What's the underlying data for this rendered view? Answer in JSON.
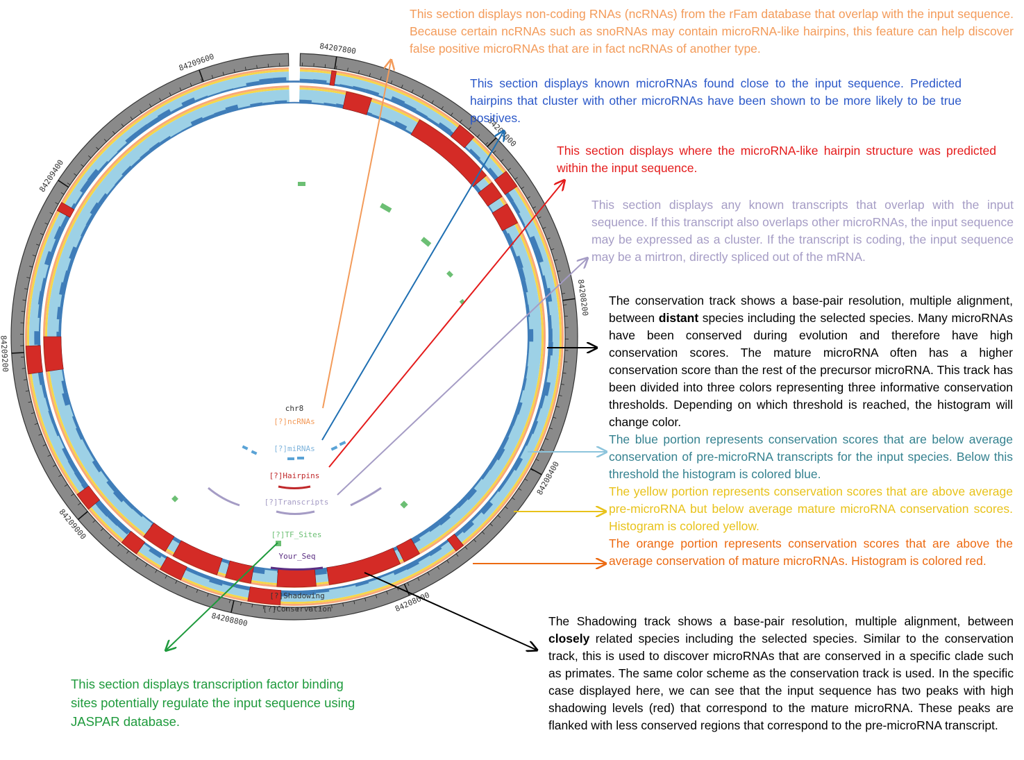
{
  "circos": {
    "chromosome": "chr8",
    "track_labels": {
      "ncrnas": "[?]ncRNAs",
      "mirnas": "[?]miRNAs",
      "hairpins": "[?]Hairpins",
      "transcripts": "[?]Transcripts",
      "tf_sites": "[?]TF_Sites",
      "your_seq": "Your_Seq",
      "shadowing": "[?]Shadowing",
      "conservation": "[?]Conservation"
    },
    "ticks": [
      {
        "label": "84207800",
        "pos": 84207800
      },
      {
        "label": "84208000",
        "pos": 84208000
      },
      {
        "label": "84208200",
        "pos": 84208200
      },
      {
        "label": "84208400",
        "pos": 84208400
      },
      {
        "label": "84208600",
        "pos": 84208600
      },
      {
        "label": "84208800",
        "pos": 84208800
      },
      {
        "label": "84209000",
        "pos": 84209000
      },
      {
        "label": "84209200",
        "pos": 84209200
      },
      {
        "label": "84209400",
        "pos": 84209400
      },
      {
        "label": "84209600",
        "pos": 84209600
      }
    ],
    "colors": {
      "below_threshold": "#9dd1e6",
      "above_premirna": "#f6d64a",
      "above_mature": "#d42b26",
      "ncrna": "#f39b5a",
      "mirna": "#5aa3d6",
      "hairpin": "#c0282a",
      "transcript": "#a59cc5",
      "tf_site": "#6cbf74",
      "your_seq": "#5a2d82"
    }
  },
  "annotations": {
    "ncrnas": "This section displays non-coding RNAs (ncRNAs) from the rFam database that overlap with the input sequence. Because certain ncRNAs such as snoRNAs may contain microRNA-like hairpins, this feature can help discover false positive microRNAs that are in fact ncRNAs of another type.",
    "mirnas": "This section displays known microRNAs found close to the input sequence. Predicted hairpins that cluster with other microRNAs have been shown to be more likely to be true positives.",
    "hairpins": "This section displays where the microRNA-like hairpin structure was predicted within the input sequence.",
    "transcripts": "This section displays any known transcripts that overlap with the input sequence. If this transcript also overlaps other microRNAs, the input sequence may be expressed as a cluster. If the transcript is coding, the input sequence may be a mirtron, directly spliced out of the mRNA.",
    "conservation": {
      "part1": "The conservation track shows a base-pair resolution, multiple alignment, between ",
      "bold": "distant",
      "part2": " species including the selected species. Many microRNAs have been conserved during evolution and therefore have high conservation scores. The mature microRNA often has a higher conservation score than the rest of the precursor microRNA. This track has been divided into three colors representing three informative conservation thresholds. Depending on which threshold is reached, the histogram will change color."
    },
    "blue": "The blue portion represents conservation scores that are below average conservation of pre-microRNA transcripts for the input species. Below this threshold the histogram is colored blue.",
    "yellow": "The yellow portion represents conservation scores that are above average pre-microRNA but below average mature microRNA conservation scores. Histogram is colored yellow.",
    "orange": "The orange portion represents conservation scores that are above the average conservation of mature microRNAs. Histogram is colored red.",
    "shadowing": {
      "part1": "The Shadowing track shows a base-pair resolution, multiple alignment, between ",
      "bold": "closely",
      "part2": " related species including the selected species. Similar to the conservation track, this is used to discover microRNAs that are conserved in a specific clade such as primates. The same color scheme as the conservation track is used. In the specific case displayed here, we can see that the input sequence has two peaks with high shadowing levels (red) that correspond to the mature microRNA. These peaks are flanked with less conserved regions that correspond to the pre-microRNA transcript."
    },
    "tf_sites": "This section displays transcription factor binding sites potentially regulate the input sequence using JASPAR database."
  }
}
